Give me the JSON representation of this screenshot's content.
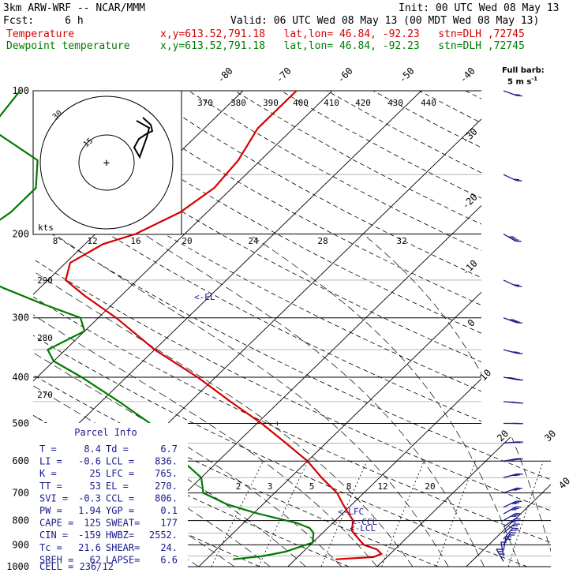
{
  "header": {
    "model": "3km ARW-WRF -- NCAR/MMM",
    "init": "Init: 00 UTC Wed 08 May 13",
    "fcst": "Fcst:     6 h",
    "valid": "Valid: 06 UTC Wed 08 May 13 (00 MDT Wed 08 May 13)",
    "temp_line": {
      "name": "Temperature",
      "loc": "x,y=613.52,791.18   lat,lon= 46.84, -92.23   stn=DLH ,72745",
      "color": "#d40000"
    },
    "dew_line": {
      "name": "Dewpoint temperature",
      "loc": "x,y=613.52,791.18   lat,lon= 46.84, -92.23   stn=DLH ,72745",
      "color": "#007a00"
    }
  },
  "wind_legend": {
    "title": "Full barb:",
    "value": "5 m s",
    "exp": "-1"
  },
  "hodograph": {
    "units": "kts",
    "ring_labels": [
      "15",
      "30"
    ],
    "speed_ticks": [
      "8",
      "12",
      "16",
      "20",
      "24",
      "28",
      "32"
    ]
  },
  "parcel": {
    "title": "Parcel Info",
    "rows": [
      {
        "l1": "T  =",
        "v1": "8.4",
        "l2": "Td =",
        "v2": "6.7"
      },
      {
        "l1": "LI =",
        "v1": "-0.6",
        "l2": "LCL =",
        "v2": "836."
      },
      {
        "l1": "K  =",
        "v1": "25",
        "l2": "LFC =",
        "v2": "765."
      },
      {
        "l1": "TT =",
        "v1": "53",
        "l2": "EL  =",
        "v2": "270."
      },
      {
        "l1": "SVI =",
        "v1": "-0.3",
        "l2": "CCL =",
        "v2": "806."
      },
      {
        "l1": "PW =",
        "v1": "1.94",
        "l2": "YGP =",
        "v2": "0.1"
      },
      {
        "l1": "CAPE =",
        "v1": "125",
        "l2": "SWEAT=",
        "v2": "177"
      },
      {
        "l1": "CIN =",
        "v1": "-159",
        "l2": "HWBZ=",
        "v2": "2552."
      },
      {
        "l1": "Tc =",
        "v1": "21.6",
        "l2": "SHEAR=",
        "v2": "24."
      },
      {
        "l1": "SREH =",
        "v1": "62",
        "l2": "LAPSE=",
        "v2": "6.6"
      }
    ],
    "cell": "CELL = 236/12"
  },
  "chart_data": {
    "type": "line",
    "title": "",
    "xlabel": "",
    "ylabel": "",
    "pressure_ticks": [
      100,
      200,
      300,
      400,
      500,
      600,
      700,
      800,
      900,
      1000
    ],
    "isotherm_labels": [
      "-80",
      "-70",
      "-60",
      "-50",
      "-40",
      "-30",
      "-20",
      "-10",
      "0",
      "10",
      "20",
      "30",
      "40"
    ],
    "theta_labels": [
      "370",
      "380",
      "390",
      "400",
      "410",
      "420",
      "430",
      "440",
      "290",
      "280",
      "270"
    ],
    "mixing_ratio_labels": [
      "2",
      "3",
      "5",
      "8",
      "12",
      "20"
    ],
    "level_markers": [
      "EL",
      "LFC",
      "CCL",
      "LCL"
    ],
    "series": [
      {
        "name": "Temperature",
        "color": "#d40000",
        "p": [
          965,
          955,
          940,
          920,
          900,
          880,
          860,
          840,
          820,
          800,
          770,
          740,
          700,
          650,
          600,
          550,
          500,
          450,
          400,
          350,
          300,
          270,
          250,
          230,
          210,
          200,
          180,
          160,
          140,
          120,
          100
        ],
        "t": [
          4.5,
          8.5,
          9.0,
          8.0,
          6.0,
          5.0,
          4.0,
          3.0,
          2.5,
          2.0,
          0.5,
          -1.0,
          -3.0,
          -6.5,
          -10.0,
          -14.5,
          -19.5,
          -25.5,
          -32.0,
          -40.0,
          -48.0,
          -54.0,
          -58.0,
          -59.5,
          -58.0,
          -55.5,
          -53.0,
          -52.0,
          -52.5,
          -54.0,
          -54.0
        ]
      },
      {
        "name": "Dewpoint temperature",
        "color": "#007a00",
        "p": [
          965,
          950,
          930,
          910,
          890,
          870,
          850,
          830,
          810,
          790,
          770,
          740,
          700,
          650,
          600,
          550,
          500,
          450,
          400,
          370,
          350,
          320,
          300,
          280,
          260,
          240,
          220,
          200,
          180,
          160,
          140,
          120,
          100
        ],
        "td": [
          -7.0,
          -4.0,
          -2.0,
          -1.0,
          0.0,
          -0.5,
          -1.0,
          -2.0,
          -4.0,
          -7.0,
          -10.0,
          -14.0,
          -18.0,
          -20.0,
          -24.0,
          -28.0,
          -32.0,
          -38.0,
          -45.0,
          -50.0,
          -52.0,
          -50.0,
          -52.0,
          -58.0,
          -64.0,
          -70.0,
          -73.0,
          -73.0,
          -72.0,
          -72.0,
          -75.0,
          -84.0,
          -85.0
        ]
      }
    ],
    "wind_profile": {
      "p": [
        975,
        950,
        925,
        900,
        875,
        850,
        825,
        800,
        775,
        750,
        700,
        650,
        600,
        550,
        500,
        450,
        400,
        350,
        300,
        250,
        200,
        150,
        100
      ],
      "spd_kt": [
        8,
        12,
        14,
        14,
        14,
        14,
        15,
        15,
        16,
        16,
        15,
        16,
        18,
        20,
        24,
        26,
        28,
        30,
        26,
        22,
        18,
        20,
        22
      ],
      "dir_deg": [
        150,
        170,
        190,
        210,
        220,
        230,
        235,
        240,
        240,
        245,
        250,
        255,
        260,
        265,
        270,
        275,
        280,
        285,
        290,
        295,
        300,
        295,
        290
      ]
    }
  }
}
